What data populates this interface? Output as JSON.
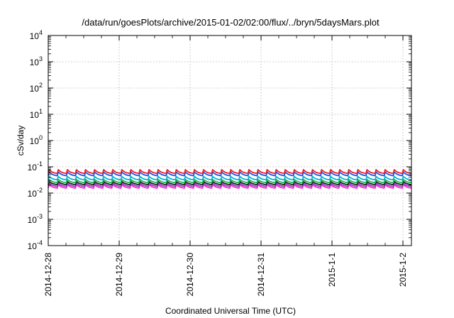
{
  "chart_data": {
    "type": "line",
    "title": "/data/run/goesPlots/archive/2015-01-02/02:00/flux/../bryn/5daysMars.plot",
    "xlabel": "Coordinated Universal Time (UTC)",
    "ylabel": "cSv/day",
    "x_tick_labels": [
      "2014-12-28",
      "2014-12-29",
      "2014-12-30",
      "2014-12-31",
      "2015-1-1",
      "2015-1-2"
    ],
    "x_range_days": [
      0,
      5.12
    ],
    "y_scale": "log",
    "ylim": [
      0.0001,
      10000
    ],
    "y_ticks": [
      {
        "base": "10",
        "exp": "4"
      },
      {
        "base": "10",
        "exp": "3"
      },
      {
        "base": "10",
        "exp": "2"
      },
      {
        "base": "10",
        "exp": "1"
      },
      {
        "base": "10",
        "exp": "0"
      },
      {
        "base": "10",
        "exp": "-1"
      },
      {
        "base": "10",
        "exp": "-2"
      },
      {
        "base": "10",
        "exp": "-3"
      },
      {
        "base": "10",
        "exp": "-4"
      }
    ],
    "grid": true,
    "legend": "none",
    "sawtooth_cycles": 40,
    "series": [
      {
        "color": "#e8202a",
        "peak": 0.078,
        "trough": 0.056
      },
      {
        "color": "#1d4fe0",
        "peak": 0.064,
        "trough": 0.046
      },
      {
        "color": "#00b4d8",
        "peak": 0.043,
        "trough": 0.032
      },
      {
        "color": "#22b04e",
        "peak": 0.033,
        "trough": 0.025
      },
      {
        "color": "#202020",
        "peak": 0.028,
        "trough": 0.021
      },
      {
        "color": "#9040c0",
        "peak": 0.024,
        "trough": 0.018
      },
      {
        "color": "#ff20d0",
        "peak": 0.021,
        "trough": 0.0155
      }
    ]
  }
}
